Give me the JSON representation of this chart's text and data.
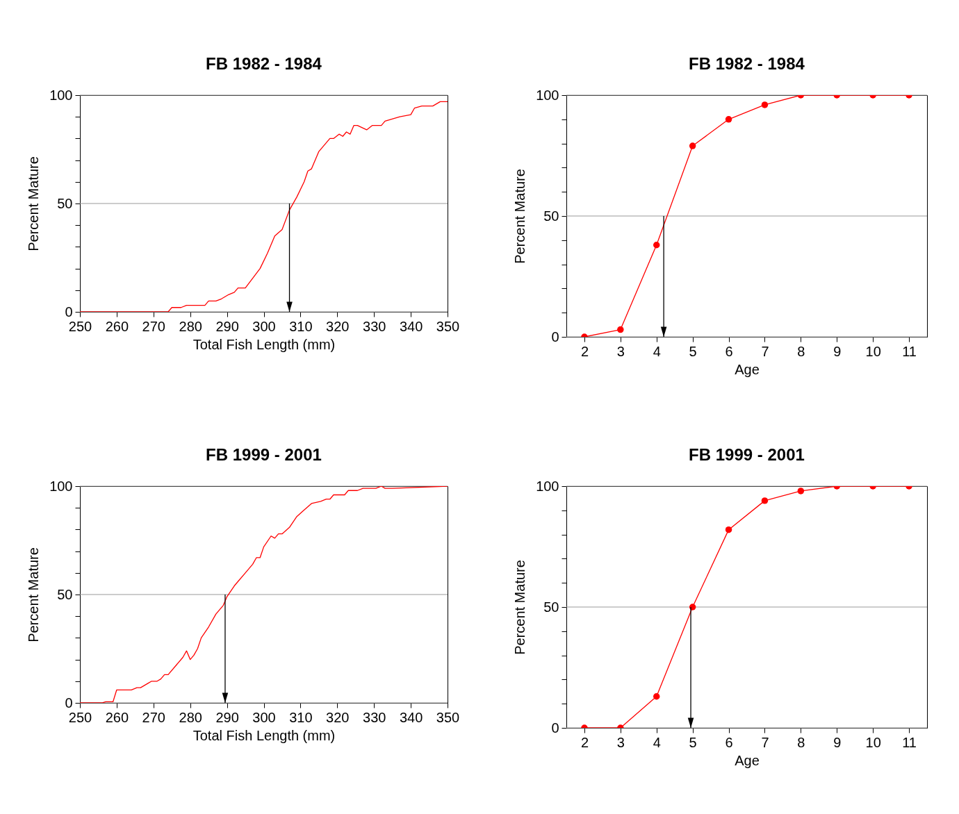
{
  "chart_data": [
    {
      "type": "line",
      "title": "FB  1982 - 1984",
      "xlabel": "Total Fish Length (mm)",
      "ylabel": "Percent Mature",
      "xlim": [
        250,
        350
      ],
      "xticks": [
        250,
        260,
        270,
        280,
        290,
        300,
        310,
        320,
        330,
        340,
        350
      ],
      "ylim": [
        0,
        100
      ],
      "yticks": [
        0,
        {
          "value": 10,
          "label": null
        },
        {
          "value": 20,
          "label": null
        },
        {
          "value": 30,
          "label": null
        },
        {
          "value": 40,
          "label": null
        },
        50,
        {
          "value": 60,
          "label": null
        },
        {
          "value": 70,
          "label": null
        },
        {
          "value": 80,
          "label": null
        },
        {
          "value": 90,
          "label": null
        },
        100
      ],
      "grid": "y",
      "marker": "none",
      "legend": false,
      "series": [
        {
          "color": "#ff0000",
          "x": [
            250,
            274,
            275,
            277.5,
            279,
            281,
            284,
            285,
            287,
            288.5,
            290.5,
            292,
            293,
            295,
            299,
            301,
            303,
            305,
            307,
            309,
            311,
            312,
            313,
            315,
            316,
            318,
            319,
            320.5,
            321.5,
            322.5,
            323.5,
            324.5,
            325.5,
            328,
            329.5,
            332,
            333,
            337,
            340,
            341,
            343,
            346,
            348,
            350
          ],
          "values": [
            0,
            0,
            2,
            2,
            3,
            3,
            3,
            5,
            5,
            6,
            8,
            9,
            11,
            11,
            20,
            27,
            35,
            38,
            47,
            53,
            60,
            65,
            66,
            74,
            76,
            80,
            80,
            82,
            81,
            83,
            82,
            86,
            86,
            84,
            86,
            86,
            88,
            90,
            91,
            94,
            95,
            95,
            97,
            97
          ]
        }
      ],
      "ref_lines": [
        {
          "axis": "x",
          "value": 307,
          "color": "#000000"
        }
      ]
    },
    {
      "type": "line",
      "title": "FB  1982 - 1984",
      "xlabel": "Age",
      "ylabel": "Percent Mature",
      "xlim": [
        1.5,
        11.5
      ],
      "xticks": [
        2,
        3,
        4,
        5,
        6,
        7,
        8,
        9,
        10,
        11
      ],
      "ylim": [
        0,
        100
      ],
      "yticks": [
        0,
        {
          "value": 10,
          "label": null
        },
        {
          "value": 20,
          "label": null
        },
        {
          "value": 30,
          "label": null
        },
        {
          "value": 40,
          "label": null
        },
        50,
        {
          "value": 60,
          "label": null
        },
        {
          "value": 70,
          "label": null
        },
        {
          "value": 80,
          "label": null
        },
        {
          "value": 90,
          "label": null
        },
        100
      ],
      "grid": "y",
      "marker": "circle",
      "legend": false,
      "series": [
        {
          "color": "#ff0000",
          "x": [
            2,
            3,
            4,
            5,
            6,
            7,
            8,
            9,
            10,
            11
          ],
          "values": [
            0,
            3,
            38,
            79,
            90,
            96,
            100,
            100,
            100,
            100
          ]
        }
      ],
      "ref_lines": [
        {
          "axis": "x",
          "value": 4.2,
          "color": "#000000"
        }
      ]
    },
    {
      "type": "line",
      "title": "FB  1999 - 2001",
      "xlabel": "Total Fish Length (mm)",
      "ylabel": "Percent Mature",
      "xlim": [
        250,
        350
      ],
      "xticks": [
        250,
        260,
        270,
        280,
        290,
        300,
        310,
        320,
        330,
        340,
        350
      ],
      "ylim": [
        0,
        100
      ],
      "yticks": [
        0,
        {
          "value": 10,
          "label": null
        },
        {
          "value": 20,
          "label": null
        },
        {
          "value": 30,
          "label": null
        },
        {
          "value": 40,
          "label": null
        },
        50,
        {
          "value": 60,
          "label": null
        },
        {
          "value": 70,
          "label": null
        },
        {
          "value": 80,
          "label": null
        },
        {
          "value": 90,
          "label": null
        },
        100
      ],
      "grid": "y",
      "marker": "none",
      "legend": false,
      "series": [
        {
          "color": "#ff0000",
          "x": [
            250,
            256,
            257,
            259,
            260,
            262,
            264,
            265.5,
            266.5,
            268.5,
            269.5,
            271,
            272,
            273,
            274,
            278,
            279,
            280,
            281,
            282,
            283,
            285,
            287,
            289,
            290,
            292,
            293,
            295,
            297,
            298,
            299,
            300,
            302,
            303,
            304,
            305,
            307,
            309,
            311,
            313,
            315.5,
            317,
            318,
            319,
            322,
            323,
            325.5,
            327,
            330.5,
            332,
            333,
            335,
            350
          ],
          "values": [
            0,
            0,
            0.5,
            0.5,
            6,
            6,
            6,
            7,
            7,
            9,
            10,
            10,
            11,
            13,
            13,
            21,
            24,
            20,
            22,
            25,
            30,
            35,
            41,
            45,
            49,
            54,
            56,
            60,
            64,
            67,
            67,
            72,
            77,
            76,
            78,
            78,
            81,
            86,
            89,
            92,
            93,
            94,
            94,
            96,
            96,
            98,
            98,
            99,
            99,
            100,
            99,
            99,
            100
          ]
        }
      ],
      "ref_lines": [
        {
          "axis": "x",
          "value": 289.5,
          "color": "#000000"
        }
      ]
    },
    {
      "type": "line",
      "title": "FB  1999 - 2001",
      "xlabel": "Age",
      "ylabel": "Percent Mature",
      "xlim": [
        1.5,
        11.5
      ],
      "xticks": [
        2,
        3,
        4,
        5,
        6,
        7,
        8,
        9,
        10,
        11
      ],
      "ylim": [
        0,
        100
      ],
      "yticks": [
        0,
        {
          "value": 10,
          "label": null
        },
        {
          "value": 20,
          "label": null
        },
        {
          "value": 30,
          "label": null
        },
        {
          "value": 40,
          "label": null
        },
        50,
        {
          "value": 60,
          "label": null
        },
        {
          "value": 70,
          "label": null
        },
        {
          "value": 80,
          "label": null
        },
        {
          "value": 90,
          "label": null
        },
        100
      ],
      "grid": "y",
      "marker": "circle",
      "legend": false,
      "series": [
        {
          "color": "#ff0000",
          "x": [
            2,
            3,
            4,
            5,
            6,
            7,
            8,
            9,
            10,
            11
          ],
          "values": [
            0,
            0,
            13,
            50,
            82,
            94,
            98,
            100,
            100,
            100
          ]
        }
      ],
      "ref_lines": [
        {
          "axis": "x",
          "value": 4.95,
          "color": "#000000"
        }
      ]
    }
  ]
}
